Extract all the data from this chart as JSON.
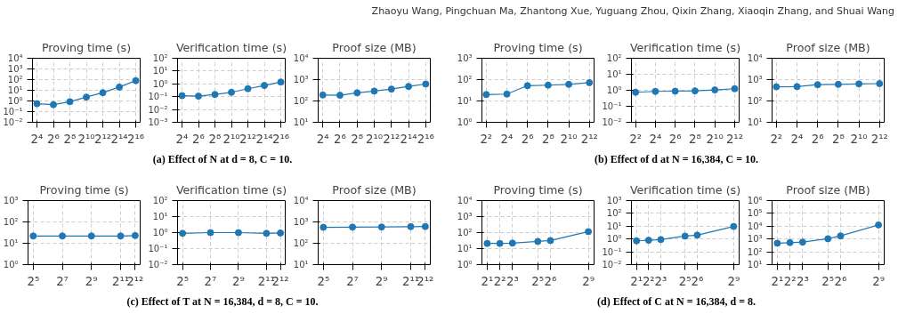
{
  "chart_data": [
    {
      "type": "line",
      "title": "Proving time (s)",
      "x": [
        16,
        64,
        256,
        1024,
        4096,
        16384,
        65536
      ],
      "series": [
        {
          "color": "#1f77b4",
          "values": [
            0.55,
            0.45,
            0.85,
            2.3,
            6,
            20,
            80
          ]
        }
      ],
      "log": "xy",
      "xlim": [
        11,
        95000
      ],
      "xticks": [
        {
          "value": 16,
          "label": "2⁴"
        },
        {
          "value": 64,
          "label": "2⁶"
        },
        {
          "value": 256,
          "label": "2⁸"
        },
        {
          "value": 1024,
          "label": "2¹⁰"
        },
        {
          "value": 4096,
          "label": "2¹²"
        },
        {
          "value": 16384,
          "label": "2¹⁴"
        },
        {
          "value": 65536,
          "label": "2¹⁶"
        }
      ],
      "ylim": [
        0.01,
        10000
      ],
      "yticks": [
        {
          "value": 0.01,
          "label": "10⁻²"
        },
        {
          "value": 0.1,
          "label": "10⁻¹"
        },
        {
          "value": 1,
          "label": "10⁰"
        },
        {
          "value": 10,
          "label": "10¹"
        },
        {
          "value": 100,
          "label": "10²"
        },
        {
          "value": 1000,
          "label": "10³"
        },
        {
          "value": 10000,
          "label": "10⁴"
        }
      ],
      "grid": true,
      "marker": "circle"
    },
    {
      "type": "line",
      "title": "Verification time (s)",
      "x": [
        16,
        64,
        256,
        1024,
        4096,
        16384,
        65536
      ],
      "series": [
        {
          "color": "#1f77b4",
          "values": [
            0.12,
            0.11,
            0.15,
            0.22,
            0.42,
            0.75,
            1.4
          ]
        }
      ],
      "log": "xy",
      "xlim": [
        11,
        95000
      ],
      "xticks": [
        {
          "value": 16,
          "label": "2⁴"
        },
        {
          "value": 64,
          "label": "2⁶"
        },
        {
          "value": 256,
          "label": "2⁸"
        },
        {
          "value": 1024,
          "label": "2¹⁰"
        },
        {
          "value": 4096,
          "label": "2¹²"
        },
        {
          "value": 16384,
          "label": "2¹⁴"
        },
        {
          "value": 65536,
          "label": "2¹⁶"
        }
      ],
      "ylim": [
        0.001,
        100
      ],
      "yticks": [
        {
          "value": 0.001,
          "label": "10⁻³"
        },
        {
          "value": 0.01,
          "label": "10⁻²"
        },
        {
          "value": 0.1,
          "label": "10⁻¹"
        },
        {
          "value": 1,
          "label": "10⁰"
        },
        {
          "value": 10,
          "label": "10¹"
        },
        {
          "value": 100,
          "label": "10²"
        }
      ],
      "grid": true,
      "marker": "circle",
      "annotations": [
        "(a) Effect of N at d = 8, C = 10."
      ]
    },
    {
      "type": "line",
      "title": "Proof size (MB)",
      "x": [
        16,
        64,
        256,
        1024,
        4096,
        16384,
        65536
      ],
      "series": [
        {
          "color": "#1f77b4",
          "values": [
            190,
            185,
            240,
            290,
            360,
            480,
            620
          ]
        }
      ],
      "log": "xy",
      "xlim": [
        11,
        95000
      ],
      "xticks": [
        {
          "value": 16,
          "label": "2⁴"
        },
        {
          "value": 64,
          "label": "2⁶"
        },
        {
          "value": 256,
          "label": "2⁸"
        },
        {
          "value": 1024,
          "label": "2¹⁰"
        },
        {
          "value": 4096,
          "label": "2¹²"
        },
        {
          "value": 16384,
          "label": "2¹⁴"
        },
        {
          "value": 65536,
          "label": "2¹⁶"
        }
      ],
      "ylim": [
        10,
        10000
      ],
      "yticks": [
        {
          "value": 10,
          "label": "10¹"
        },
        {
          "value": 100,
          "label": "10²"
        },
        {
          "value": 1000,
          "label": "10³"
        },
        {
          "value": 10000,
          "label": "10⁴"
        }
      ],
      "grid": true,
      "marker": "circle"
    },
    {
      "type": "line",
      "title": "Proving time (s)",
      "x": [
        4,
        16,
        64,
        256,
        1024,
        4096
      ],
      "series": [
        {
          "color": "#1f77b4",
          "values": [
            20,
            21,
            52,
            55,
            60,
            72
          ]
        }
      ],
      "log": "xy",
      "xlim": [
        3,
        5600
      ],
      "xticks": [
        {
          "value": 4,
          "label": "2²"
        },
        {
          "value": 16,
          "label": "2⁴"
        },
        {
          "value": 64,
          "label": "2⁶"
        },
        {
          "value": 256,
          "label": "2⁸"
        },
        {
          "value": 1024,
          "label": "2¹⁰"
        },
        {
          "value": 4096,
          "label": "2¹²"
        }
      ],
      "ylim": [
        1,
        1000
      ],
      "yticks": [
        {
          "value": 1,
          "label": "10⁰"
        },
        {
          "value": 10,
          "label": "10¹"
        },
        {
          "value": 100,
          "label": "10²"
        },
        {
          "value": 1000,
          "label": "10³"
        }
      ],
      "grid": true,
      "marker": "circle"
    },
    {
      "type": "line",
      "title": "Verification time (s)",
      "x": [
        4,
        16,
        64,
        256,
        1024,
        4096
      ],
      "series": [
        {
          "color": "#1f77b4",
          "values": [
            0.75,
            0.85,
            0.88,
            0.92,
            1.05,
            1.25
          ]
        }
      ],
      "log": "xy",
      "xlim": [
        3,
        5600
      ],
      "xticks": [
        {
          "value": 4,
          "label": "2²"
        },
        {
          "value": 16,
          "label": "2⁴"
        },
        {
          "value": 64,
          "label": "2⁶"
        },
        {
          "value": 256,
          "label": "2⁸"
        },
        {
          "value": 1024,
          "label": "2¹⁰"
        },
        {
          "value": 4096,
          "label": "2¹²"
        }
      ],
      "ylim": [
        0.01,
        100
      ],
      "yticks": [
        {
          "value": 0.01,
          "label": "10⁻²"
        },
        {
          "value": 0.1,
          "label": "10⁻¹"
        },
        {
          "value": 1,
          "label": "10⁰"
        },
        {
          "value": 10,
          "label": "10¹"
        },
        {
          "value": 100,
          "label": "10²"
        }
      ],
      "grid": true,
      "marker": "circle",
      "annotations": [
        "(b) Effect of d at N = 16,384, C = 10."
      ]
    },
    {
      "type": "line",
      "title": "Proof size (MB)",
      "x": [
        4,
        16,
        64,
        256,
        1024,
        4096
      ],
      "series": [
        {
          "color": "#1f77b4",
          "values": [
            460,
            470,
            580,
            600,
            630,
            650
          ]
        }
      ],
      "log": "xy",
      "xlim": [
        3,
        5600
      ],
      "xticks": [
        {
          "value": 4,
          "label": "2²"
        },
        {
          "value": 16,
          "label": "2⁴"
        },
        {
          "value": 64,
          "label": "2⁶"
        },
        {
          "value": 256,
          "label": "2⁸"
        },
        {
          "value": 1024,
          "label": "2¹⁰"
        },
        {
          "value": 4096,
          "label": "2¹²"
        }
      ],
      "ylim": [
        10,
        10000
      ],
      "yticks": [
        {
          "value": 10,
          "label": "10¹"
        },
        {
          "value": 100,
          "label": "10²"
        },
        {
          "value": 1000,
          "label": "10³"
        },
        {
          "value": 10000,
          "label": "10⁴"
        }
      ],
      "grid": true,
      "marker": "circle",
      "annotations": [
        "Zhaoyu Wang, Pingchuan Ma, Zhantong Xue, Yuguang Zhou, Qixin Zhang, Xiaoqin Zhang, and Shuai Wang"
      ]
    },
    {
      "type": "line",
      "title": "Proving time (s)",
      "x": [
        32,
        128,
        512,
        2048,
        4096
      ],
      "series": [
        {
          "color": "#1f77b4",
          "values": [
            22,
            22,
            22,
            22,
            23
          ]
        }
      ],
      "log": "xy",
      "xlim": [
        25,
        5200
      ],
      "xticks": [
        {
          "value": 32,
          "label": "2⁵"
        },
        {
          "value": 128,
          "label": "2⁷"
        },
        {
          "value": 512,
          "label": "2⁹"
        },
        {
          "value": 2048,
          "label": "2¹¹"
        },
        {
          "value": 4096,
          "label": "2¹²"
        }
      ],
      "ylim": [
        1,
        1000
      ],
      "yticks": [
        {
          "value": 1,
          "label": "10⁰"
        },
        {
          "value": 10,
          "label": "10¹"
        },
        {
          "value": 100,
          "label": "10²"
        },
        {
          "value": 1000,
          "label": "10³"
        }
      ],
      "grid": true,
      "marker": "circle"
    },
    {
      "type": "line",
      "title": "Verification time (s)",
      "x": [
        32,
        128,
        512,
        2048,
        4096
      ],
      "series": [
        {
          "color": "#1f77b4",
          "values": [
            0.9,
            1.0,
            1.0,
            0.9,
            0.95
          ]
        }
      ],
      "log": "xy",
      "xlim": [
        25,
        5200
      ],
      "xticks": [
        {
          "value": 32,
          "label": "2⁵"
        },
        {
          "value": 128,
          "label": "2⁷"
        },
        {
          "value": 512,
          "label": "2⁹"
        },
        {
          "value": 2048,
          "label": "2¹¹"
        },
        {
          "value": 4096,
          "label": "2¹²"
        }
      ],
      "ylim": [
        0.01,
        100
      ],
      "yticks": [
        {
          "value": 0.01,
          "label": "10⁻²"
        },
        {
          "value": 0.1,
          "label": "10⁻¹"
        },
        {
          "value": 1,
          "label": "10⁰"
        },
        {
          "value": 10,
          "label": "10¹"
        },
        {
          "value": 100,
          "label": "10²"
        }
      ],
      "grid": true,
      "marker": "circle",
      "annotations": [
        "(c) Effect of T at N = 16,384, d = 8, C = 10."
      ]
    },
    {
      "type": "line",
      "title": "Proof size (MB)",
      "x": [
        32,
        128,
        512,
        2048,
        4096
      ],
      "series": [
        {
          "color": "#1f77b4",
          "values": [
            560,
            570,
            580,
            600,
            610
          ]
        }
      ],
      "log": "xy",
      "xlim": [
        25,
        5200
      ],
      "xticks": [
        {
          "value": 32,
          "label": "2⁵"
        },
        {
          "value": 128,
          "label": "2⁷"
        },
        {
          "value": 512,
          "label": "2⁹"
        },
        {
          "value": 2048,
          "label": "2¹¹"
        },
        {
          "value": 4096,
          "label": "2¹²"
        }
      ],
      "ylim": [
        10,
        10000
      ],
      "yticks": [
        {
          "value": 10,
          "label": "10¹"
        },
        {
          "value": 100,
          "label": "10²"
        },
        {
          "value": 1000,
          "label": "10³"
        },
        {
          "value": 10000,
          "label": "10⁴"
        }
      ],
      "grid": true,
      "marker": "circle"
    },
    {
      "type": "line",
      "title": "Proving time (s)",
      "x": [
        2,
        4,
        8,
        32,
        64,
        512
      ],
      "series": [
        {
          "color": "#1f77b4",
          "values": [
            21,
            21,
            22,
            28,
            32,
            115
          ]
        }
      ],
      "log": "xy",
      "xlim": [
        1.5,
        700
      ],
      "xticks": [
        {
          "value": 2,
          "label": "2¹"
        },
        {
          "value": 4,
          "label": "2²"
        },
        {
          "value": 8,
          "label": "2³"
        },
        {
          "value": 32,
          "label": "2⁵"
        },
        {
          "value": 64,
          "label": "2⁶"
        },
        {
          "value": 512,
          "label": "2⁹"
        }
      ],
      "ylim": [
        1,
        10000
      ],
      "yticks": [
        {
          "value": 1,
          "label": "10⁰"
        },
        {
          "value": 10,
          "label": "10¹"
        },
        {
          "value": 100,
          "label": "10²"
        },
        {
          "value": 1000,
          "label": "10³"
        },
        {
          "value": 10000,
          "label": "10⁴"
        }
      ],
      "grid": true,
      "marker": "circle"
    },
    {
      "type": "line",
      "title": "Verification time (s)",
      "x": [
        2,
        4,
        8,
        32,
        64,
        512
      ],
      "series": [
        {
          "color": "#1f77b4",
          "values": [
            0.72,
            0.8,
            0.9,
            1.7,
            2.0,
            9.5
          ]
        }
      ],
      "log": "xy",
      "xlim": [
        1.5,
        700
      ],
      "xticks": [
        {
          "value": 2,
          "label": "2¹"
        },
        {
          "value": 4,
          "label": "2²"
        },
        {
          "value": 8,
          "label": "2³"
        },
        {
          "value": 32,
          "label": "2⁵"
        },
        {
          "value": 64,
          "label": "2⁶"
        },
        {
          "value": 512,
          "label": "2⁹"
        }
      ],
      "ylim": [
        0.01,
        1000
      ],
      "yticks": [
        {
          "value": 0.01,
          "label": "10⁻²"
        },
        {
          "value": 0.1,
          "label": "10⁻¹"
        },
        {
          "value": 1,
          "label": "10⁰"
        },
        {
          "value": 10,
          "label": "10¹"
        },
        {
          "value": 100,
          "label": "10²"
        },
        {
          "value": 1000,
          "label": "10³"
        }
      ],
      "grid": true,
      "marker": "circle",
      "annotations": [
        "(d) Effect of C at N = 16,384, d = 8."
      ]
    },
    {
      "type": "line",
      "title": "Proof size (MB)",
      "x": [
        2,
        4,
        8,
        32,
        64,
        512
      ],
      "series": [
        {
          "color": "#1f77b4",
          "values": [
            470,
            520,
            570,
            1050,
            1750,
            12500
          ]
        }
      ],
      "log": "xy",
      "xlim": [
        1.5,
        700
      ],
      "xticks": [
        {
          "value": 2,
          "label": "2¹"
        },
        {
          "value": 4,
          "label": "2²"
        },
        {
          "value": 8,
          "label": "2³"
        },
        {
          "value": 32,
          "label": "2⁵"
        },
        {
          "value": 64,
          "label": "2⁶"
        },
        {
          "value": 512,
          "label": "2⁹"
        }
      ],
      "ylim": [
        10,
        1000000
      ],
      "yticks": [
        {
          "value": 10,
          "label": "10¹"
        },
        {
          "value": 100,
          "label": "10²"
        },
        {
          "value": 1000,
          "label": "10³"
        },
        {
          "value": 10000,
          "label": "10⁴"
        },
        {
          "value": 100000,
          "label": "10⁵"
        },
        {
          "value": 1000000,
          "label": "10⁶"
        }
      ],
      "grid": true,
      "marker": "circle"
    }
  ]
}
